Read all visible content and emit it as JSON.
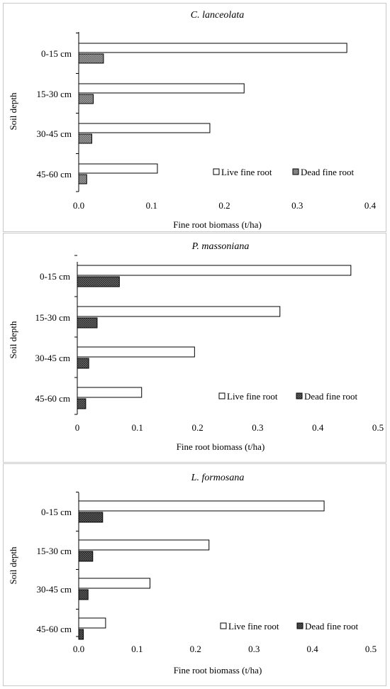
{
  "chart_data": [
    {
      "type": "bar",
      "orientation": "horizontal",
      "title": "C. lanceolata",
      "categories": [
        "0-15 cm",
        "15-30 cm",
        "30-45 cm",
        "45-60 cm"
      ],
      "ylabel": "Soil depth",
      "xlabel": "Fine root biomass (t/ha)",
      "xlim": [
        0,
        0.4
      ],
      "xticks": [
        "0.0",
        "0.1",
        "0.2",
        "0.3",
        "0.4"
      ],
      "grid": false,
      "legend_position": "bottom-right",
      "series": [
        {
          "name": "Live fine root",
          "values": [
            0.368,
            0.227,
            0.18,
            0.108
          ],
          "color": "#ffffff",
          "pattern": "none"
        },
        {
          "name": "Dead fine root",
          "values": [
            0.034,
            0.02,
            0.018,
            0.011
          ],
          "color": "#a0a0a0",
          "pattern": "light-gray"
        }
      ]
    },
    {
      "type": "bar",
      "orientation": "horizontal",
      "title": "P. massoniana",
      "categories": [
        "0-15 cm",
        "15-30 cm",
        "30-45 cm",
        "45-60 cm"
      ],
      "ylabel": "Soil depth",
      "xlabel": "Fine root biomass (t/ha)",
      "xlim": [
        0,
        0.5
      ],
      "xticks": [
        "0",
        "0.1",
        "0.2",
        "0.3",
        "0.4",
        "0.5"
      ],
      "grid": false,
      "legend_position": "bottom-right",
      "series": [
        {
          "name": "Live fine root",
          "values": [
            0.455,
            0.337,
            0.195,
            0.107
          ],
          "color": "#ffffff",
          "pattern": "none"
        },
        {
          "name": "Dead fine root",
          "values": [
            0.07,
            0.033,
            0.019,
            0.014
          ],
          "color": "#707070",
          "pattern": "dark-crosshatch"
        }
      ]
    },
    {
      "type": "bar",
      "orientation": "horizontal",
      "title": "L. formosana",
      "categories": [
        "0-15 cm",
        "15-30 cm",
        "30-45 cm",
        "45-60 cm"
      ],
      "ylabel": "Soil depth",
      "xlabel": "Fine root biomass (t/ha)",
      "xlim": [
        0,
        0.5
      ],
      "xticks": [
        "0.0",
        "0.1",
        "0.2",
        "0.3",
        "0.4",
        "0.5"
      ],
      "grid": false,
      "legend_position": "bottom-right",
      "series": [
        {
          "name": "Live fine root",
          "values": [
            0.42,
            0.223,
            0.122,
            0.046
          ],
          "color": "#ffffff",
          "pattern": "none"
        },
        {
          "name": "Dead fine root",
          "values": [
            0.041,
            0.024,
            0.016,
            0.008
          ],
          "color": "#606060",
          "pattern": "dark-crosshatch"
        }
      ]
    }
  ]
}
